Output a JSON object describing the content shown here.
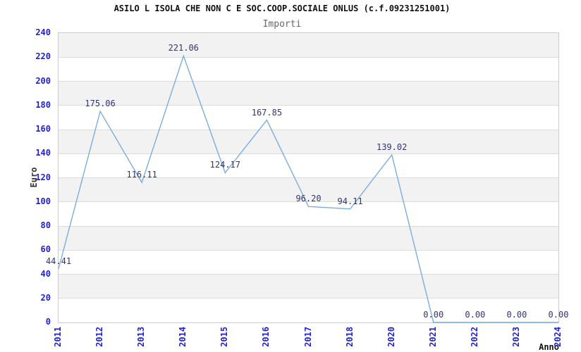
{
  "chart_data": {
    "type": "line",
    "title": "ASILO L ISOLA CHE NON C E SOC.COOP.SOCIALE ONLUS (c.f.09231251001)",
    "subtitle": "Importi",
    "xlabel": "Anno",
    "ylabel": "Euro",
    "x": [
      "2011",
      "2012",
      "2013",
      "2014",
      "2015",
      "2016",
      "2017",
      "2018",
      "2020",
      "2021",
      "2022",
      "2023",
      "2024"
    ],
    "values": [
      44.41,
      175.06,
      116.11,
      221.06,
      124.17,
      167.85,
      96.2,
      94.11,
      139.02,
      0.0,
      0.0,
      0.0,
      0.0
    ],
    "point_labels": [
      "44.41",
      "175.06",
      "116.11",
      "221.06",
      "124.17",
      "167.85",
      "96.20",
      "94.11",
      "139.02",
      "0.00",
      "0.00",
      "0.00",
      "0.00"
    ],
    "ylim": [
      0,
      240
    ],
    "ytick_step": 20,
    "grid": true,
    "legend": false,
    "band_fill_ranges_note": "alternating horizontal bands every 20 units, shaded 20-40, 60-80, 100-120, 140-160, 180-200, 220-240",
    "colors": {
      "line": "#7aaedd",
      "tick_text": "#2222cc",
      "point_label_text": "#333377",
      "band": "#f2f2f2",
      "gridline": "#dcdcdc",
      "plot_border": "#cccccc",
      "title_text": "#111111",
      "subtitle_text": "#666666",
      "axis_label_text": "#333333"
    }
  }
}
